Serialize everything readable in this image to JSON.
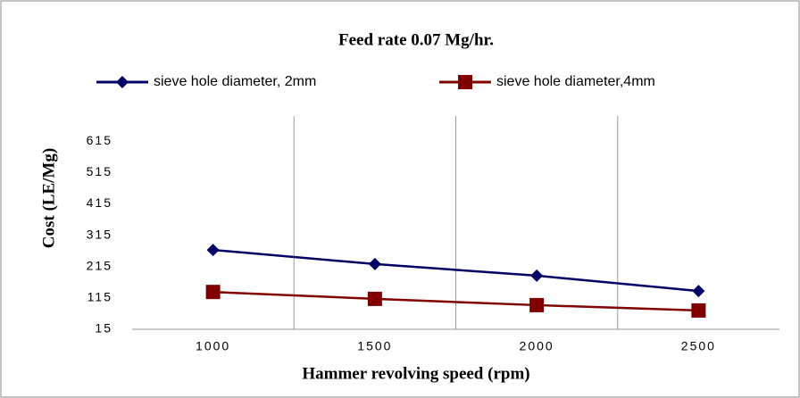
{
  "chart_data": {
    "type": "line",
    "title": "Feed rate 0.07 Mg/hr.",
    "x_label": "Hammer revolving speed (rpm)",
    "y_label": "Cost (LE/Mg)",
    "categories": [
      "1000",
      "1500",
      "2000",
      "2500"
    ],
    "series": [
      {
        "name": "sieve hole diameter, 2mm",
        "color": "#000066",
        "marker": "diamond",
        "values": [
          268,
          223,
          186,
          137
        ]
      },
      {
        "name": "sieve hole diameter,4mm",
        "color": "#800000",
        "marker": "square",
        "values": [
          134,
          112,
          92,
          75
        ]
      }
    ],
    "ylim": [
      15,
      695
    ],
    "yticks": [
      15,
      115,
      215,
      315,
      415,
      515,
      615
    ],
    "grid": "x",
    "legend": "top"
  }
}
